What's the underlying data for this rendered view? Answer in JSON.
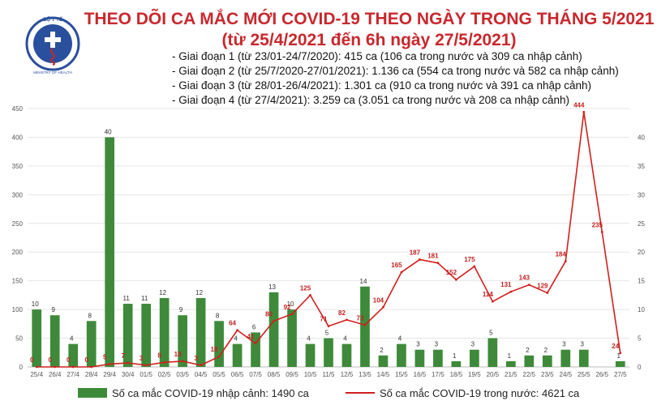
{
  "header": {
    "logo_text_top": "BỘ Y TẾ",
    "logo_text_bottom": "MINISTRY OF HEALTH",
    "title_line1": "THEO DÕI CA MẮC MỚI COVID-19 THEO NGÀY TRONG THÁNG 5/2021",
    "title_line2": "(từ 25/4/2021 đến 6h ngày 27/5/2021)",
    "notes": [
      "- Giai đoạn 1 (từ 23/01-24/7/2020): 415 ca (106 ca trong nước và 309 ca nhập cảnh)",
      "- Giai đoạn 2 (từ 25/7/2020-27/01/2021): 1.136 ca (554 ca trong nước và 582 ca nhập cảnh)",
      "- Giai đoạn 3 (từ 28/01-26/4/2021): 1.301 ca (910 ca trong nước và 391 ca nhập cảnh)",
      "- Giai đoạn 4 (từ 27/4/2021): 3.259 ca (3.051 ca trong nước và 208 ca nhập cảnh)"
    ]
  },
  "colors": {
    "bar": "#3e8a3a",
    "line": "#d0201e",
    "title": "#c8282d",
    "logo": "#2a4f9c"
  },
  "chart_data": {
    "type": "bar",
    "categories": [
      "25/4",
      "26/4",
      "27/4",
      "28/4",
      "29/4",
      "30/4",
      "01/5",
      "02/5",
      "03/5",
      "04/5",
      "05/5",
      "06/5",
      "07/5",
      "08/5",
      "09/5",
      "10/5",
      "11/5",
      "12/5",
      "13/5",
      "14/5",
      "15/5",
      "16/5",
      "17/5",
      "18/5",
      "19/5",
      "20/5",
      "21/5",
      "22/5",
      "23/5",
      "24/5",
      "25/5",
      "26/5",
      "27/5"
    ],
    "series": [
      {
        "name": "Số ca mắc COVID-19 nhập cảnh: 1490 ca",
        "type": "bar",
        "axis": "right",
        "values": [
          10,
          9,
          4,
          8,
          40,
          11,
          11,
          12,
          9,
          12,
          8,
          4,
          6,
          13,
          10,
          4,
          5,
          4,
          14,
          2,
          4,
          3,
          3,
          1,
          3,
          5,
          1,
          2,
          2,
          3,
          3,
          0,
          1
        ]
      },
      {
        "name": "Số ca mắc COVID-19 trong nước: 4621 ca",
        "type": "line",
        "axis": "left",
        "values": [
          0,
          0,
          0,
          0,
          5,
          7,
          3,
          8,
          10,
          3,
          18,
          64,
          41,
          80,
          92,
          125,
          71,
          82,
          73,
          104,
          165,
          187,
          181,
          152,
          175,
          114,
          131,
          143,
          129,
          184,
          444,
          235,
          24
        ]
      }
    ],
    "yleft_ticks": [
      0,
      50,
      100,
      150,
      200,
      250,
      300,
      350,
      400,
      450
    ],
    "yleft_lim": [
      0,
      450
    ],
    "yright_ticks": [
      0,
      5,
      10,
      15,
      20,
      25,
      30,
      35,
      40
    ],
    "yright_lim": [
      0,
      45
    ]
  }
}
